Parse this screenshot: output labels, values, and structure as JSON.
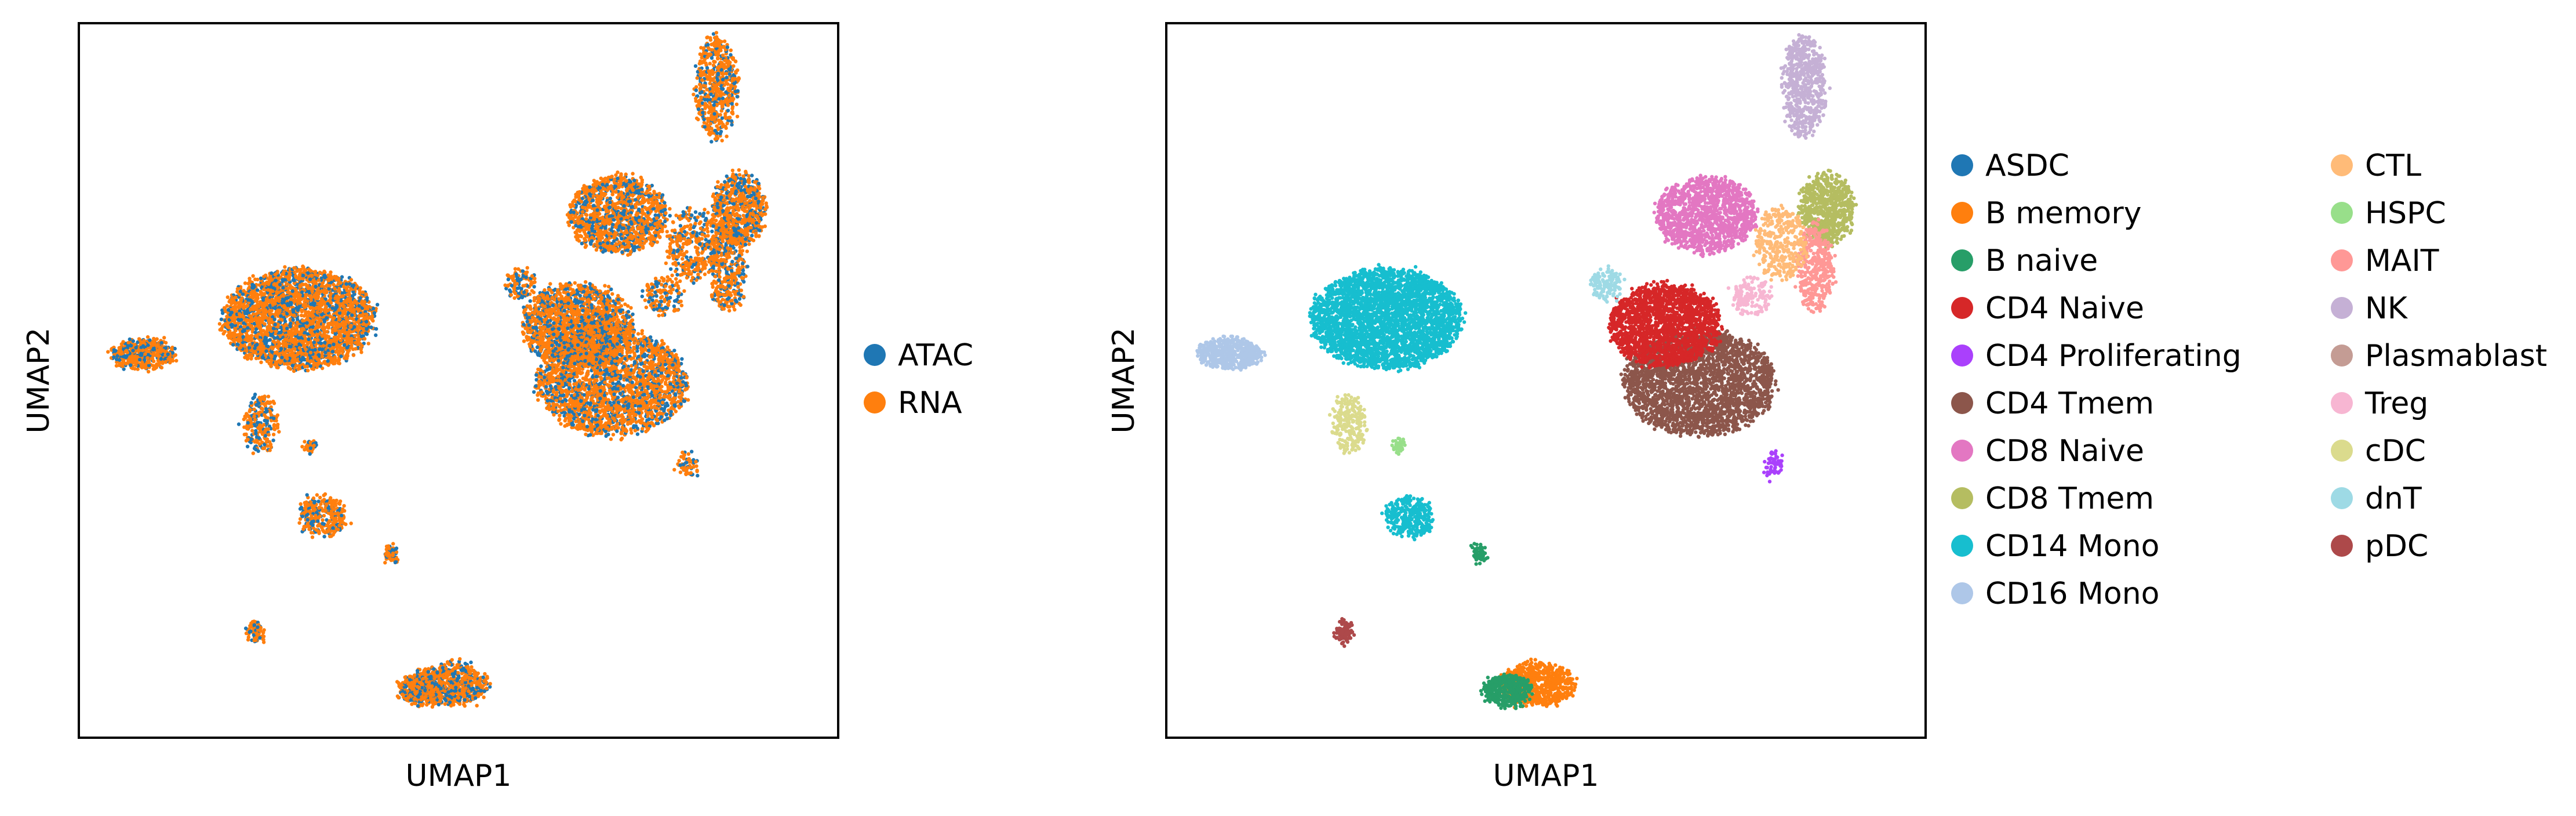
{
  "chart_data": [
    {
      "type": "scatter",
      "title": "",
      "xlabel": "UMAP1",
      "ylabel": "UMAP2",
      "xlim": [
        0,
        100
      ],
      "ylim": [
        0,
        100
      ],
      "grid": false,
      "ticks": false,
      "legend_position": "right",
      "color_by": "modality",
      "series": [
        {
          "name": "ATAC",
          "color": "#1f77b4"
        },
        {
          "name": "RNA",
          "color": "#ff7f0e"
        }
      ]
    },
    {
      "type": "scatter",
      "title": "",
      "xlabel": "UMAP1",
      "ylabel": "UMAP2",
      "xlim": [
        0,
        100
      ],
      "ylim": [
        0,
        100
      ],
      "grid": false,
      "ticks": false,
      "legend_position": "right",
      "legend_columns": 2,
      "color_by": "cell type",
      "series": [
        {
          "name": "ASDC",
          "color": "#1f77b4"
        },
        {
          "name": "B memory",
          "color": "#ff7f0e"
        },
        {
          "name": "B naive",
          "color": "#279e68"
        },
        {
          "name": "CD4 Naive",
          "color": "#d62728"
        },
        {
          "name": "CD4 Proliferating",
          "color": "#aa40fc"
        },
        {
          "name": "CD4 Tmem",
          "color": "#8c564b"
        },
        {
          "name": "CD8 Naive",
          "color": "#e377c2"
        },
        {
          "name": "CD8 Tmem",
          "color": "#b5bd61"
        },
        {
          "name": "CD14 Mono",
          "color": "#17becf"
        },
        {
          "name": "CD16 Mono",
          "color": "#aec7e8"
        },
        {
          "name": "CTL",
          "color": "#ffbb78"
        },
        {
          "name": "HSPC",
          "color": "#98df8a"
        },
        {
          "name": "MAIT",
          "color": "#ff9896"
        },
        {
          "name": "NK",
          "color": "#c5b0d5"
        },
        {
          "name": "Plasmablast",
          "color": "#c49c94"
        },
        {
          "name": "Treg",
          "color": "#f7b6d2"
        },
        {
          "name": "cDC",
          "color": "#dbdb8d"
        },
        {
          "name": "dnT",
          "color": "#9edae5"
        },
        {
          "name": "pDC",
          "color": "#ad494a"
        }
      ]
    }
  ]
}
